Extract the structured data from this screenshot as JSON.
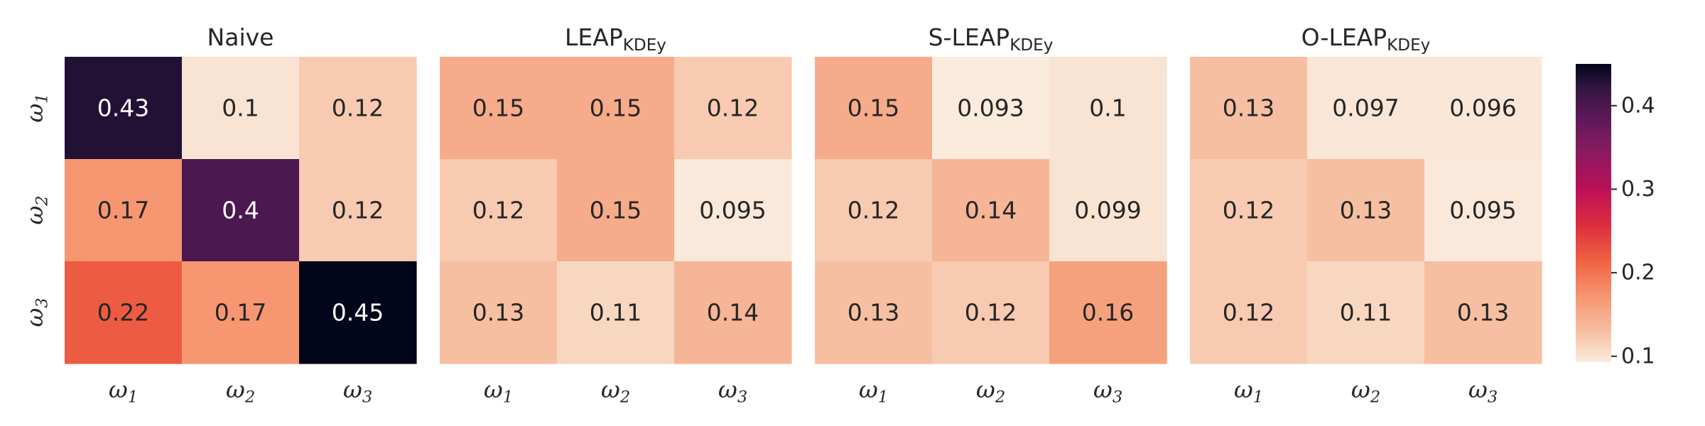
{
  "chart_data": {
    "type": "heatmap",
    "panels": [
      {
        "title": "Naive",
        "title_sub": "",
        "values": [
          [
            0.43,
            0.1,
            0.12
          ],
          [
            0.17,
            0.4,
            0.12
          ],
          [
            0.22,
            0.17,
            0.45
          ]
        ],
        "labels": [
          [
            "0.43",
            "0.1",
            "0.12"
          ],
          [
            "0.17",
            "0.4",
            "0.12"
          ],
          [
            "0.22",
            "0.17",
            "0.45"
          ]
        ]
      },
      {
        "title": "LEAP",
        "title_sub": "KDEy",
        "values": [
          [
            0.15,
            0.15,
            0.12
          ],
          [
            0.12,
            0.15,
            0.095
          ],
          [
            0.13,
            0.11,
            0.14
          ]
        ],
        "labels": [
          [
            "0.15",
            "0.15",
            "0.12"
          ],
          [
            "0.12",
            "0.15",
            "0.095"
          ],
          [
            "0.13",
            "0.11",
            "0.14"
          ]
        ]
      },
      {
        "title": "S-LEAP",
        "title_sub": "KDEy",
        "values": [
          [
            0.15,
            0.093,
            0.1
          ],
          [
            0.12,
            0.14,
            0.099
          ],
          [
            0.13,
            0.12,
            0.16
          ]
        ],
        "labels": [
          [
            "0.15",
            "0.093",
            "0.1"
          ],
          [
            "0.12",
            "0.14",
            "0.099"
          ],
          [
            "0.13",
            "0.12",
            "0.16"
          ]
        ]
      },
      {
        "title": "O-LEAP",
        "title_sub": "KDEy",
        "values": [
          [
            0.13,
            0.097,
            0.096
          ],
          [
            0.12,
            0.13,
            0.095
          ],
          [
            0.12,
            0.11,
            0.13
          ]
        ],
        "labels": [
          [
            "0.13",
            "0.097",
            "0.096"
          ],
          [
            "0.12",
            "0.13",
            "0.095"
          ],
          [
            "0.12",
            "0.11",
            "0.13"
          ]
        ]
      }
    ],
    "x_tick_labels": [
      {
        "base": "ω",
        "sub": "1"
      },
      {
        "base": "ω",
        "sub": "2"
      },
      {
        "base": "ω",
        "sub": "3"
      }
    ],
    "y_tick_labels": [
      {
        "base": "ω",
        "sub": "1"
      },
      {
        "base": "ω",
        "sub": "2"
      },
      {
        "base": "ω",
        "sub": "3"
      }
    ],
    "colorbar": {
      "range": [
        0.093,
        0.45
      ],
      "ticks": [
        0.1,
        0.2,
        0.3,
        0.4
      ],
      "tick_labels": [
        "0.1",
        "0.2",
        "0.3",
        "0.4"
      ],
      "colormap": "rocket_r"
    },
    "grid": false,
    "legend": "none"
  }
}
